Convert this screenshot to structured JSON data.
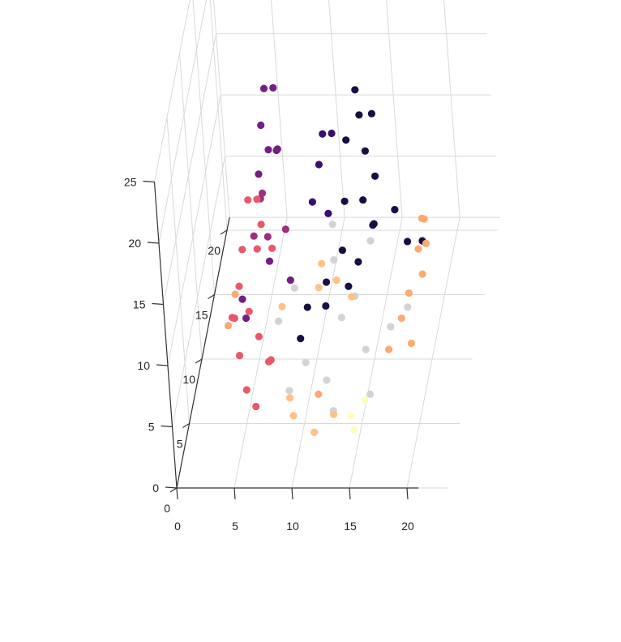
{
  "chart_data": {
    "type": "scatter",
    "title": "",
    "xlabel": "",
    "ylabel": "",
    "zlabel": "",
    "xlim": [
      0,
      21
    ],
    "ylim": [
      0,
      25
    ],
    "zlim": [
      0,
      21
    ],
    "grid": true,
    "legend": "none",
    "x_ticks": [
      "0",
      "5",
      "10",
      "15",
      "20"
    ],
    "y_ticks": [
      "0",
      "5",
      "10",
      "15",
      "20",
      "25"
    ],
    "z_ticks": [
      "0",
      "5",
      "10",
      "15",
      "20"
    ],
    "palette": [
      "#1b0c41",
      "#3b0f70",
      "#721f81",
      "#9e2f7f",
      "#cd4071",
      "#e8586a",
      "#fb8861",
      "#fea973",
      "#fec287",
      "#fcfdbf",
      "#d3d3d3"
    ],
    "series": [
      {
        "color": "#d3d3d3",
        "x": [
          10.5,
          13.0,
          15.5,
          8.5,
          11.5,
          14.0,
          17.5,
          9.5,
          12.5,
          16.5,
          11.0,
          14.5,
          7.5,
          18.5,
          13.5
        ],
        "y": [
          5.0,
          5.5,
          5.0,
          5.8,
          6.0,
          6.2,
          5.8,
          4.8,
          4.6,
          4.5,
          6.8,
          6.5,
          5.2,
          5.3,
          4.2
        ],
        "z": [
          5,
          8,
          6,
          10,
          12,
          9,
          7,
          3,
          4,
          3,
          14,
          13,
          8,
          9,
          2
        ]
      },
      {
        "color": "#1b0c41",
        "x": [
          15.0,
          15.5,
          16.0,
          14.5,
          15.5,
          16.5,
          14.0,
          15.0,
          16.0,
          13.5,
          15.5,
          14.5,
          12.5,
          11.0,
          10.5,
          12.0,
          13.5,
          18.0,
          16.5,
          19.0
        ],
        "y": [
          22.0,
          21.0,
          19.0,
          20.0,
          17.0,
          16.0,
          15.0,
          13.0,
          12.0,
          11.0,
          10.0,
          9.0,
          10.5,
          9.5,
          8.0,
          7.5,
          7.0,
          7.5,
          8.0,
          6.5
        ],
        "z": [
          10,
          9,
          11,
          8,
          10,
          9,
          8,
          10,
          9,
          8,
          11,
          9,
          6,
          5,
          4,
          7,
          9,
          12,
          14,
          13
        ]
      },
      {
        "color": "#3b0f70",
        "x": [
          12.5,
          13.0,
          12.0,
          11.5,
          12.5
        ],
        "y": [
          20.5,
          19.5,
          18.0,
          16.0,
          14.0
        ],
        "z": [
          8,
          9,
          8,
          7,
          8
        ]
      },
      {
        "color": "#721f81",
        "x": [
          6.5,
          7.0,
          6.0,
          7.5,
          6.5,
          7.0,
          5.5,
          4.5,
          5.0,
          6.5,
          8.5
        ],
        "y": [
          20.0,
          19.0,
          17.0,
          16.0,
          15.0,
          14.0,
          13.0,
          7.0,
          6.5,
          8.0,
          7.5
        ],
        "z": [
          12,
          13,
          12,
          11,
          12,
          13,
          12,
          8,
          7,
          10,
          9
        ]
      },
      {
        "color": "#9e2f7f",
        "x": [
          6.0,
          5.5,
          6.5,
          5.0,
          7.5
        ],
        "y": [
          12.5,
          11.0,
          10.0,
          9.0,
          8.5
        ],
        "z": [
          11,
          12,
          10,
          11,
          12
        ]
      },
      {
        "color": "#e8586a",
        "x": [
          5.0,
          5.5,
          6.0,
          4.5,
          5.5,
          6.5,
          4.0,
          5.0,
          6.0,
          4.5,
          3.5,
          5.5,
          7.0,
          4.0,
          6.5,
          7.5
        ],
        "y": [
          13.0,
          12.0,
          11.0,
          10.0,
          9.0,
          8.0,
          7.0,
          6.0,
          5.0,
          4.5,
          5.5,
          3.8,
          4.0,
          6.5,
          3.5,
          5.2
        ],
        "z": [
          10,
          11,
          10,
          9,
          10,
          11,
          9,
          8,
          7,
          6,
          8,
          4,
          6,
          7,
          3,
          5
        ]
      },
      {
        "color": "#fea973",
        "x": [
          20.5,
          20.0,
          20.5,
          19.5,
          20.0,
          19.0,
          18.5,
          19.5,
          17.5,
          4.0,
          4.5,
          12.0
        ],
        "y": [
          12.5,
          11.5,
          10.5,
          9.0,
          8.0,
          7.5,
          6.5,
          5.5,
          5.0,
          8.0,
          9.5,
          4.5
        ],
        "z": [
          9,
          10,
          9,
          10,
          9,
          8,
          7,
          6,
          6,
          5,
          6,
          3
        ]
      },
      {
        "color": "#fec287",
        "x": [
          11.0,
          12.5,
          14.0,
          10.0,
          12.0,
          13.5,
          9.5,
          8.5,
          11.5
        ],
        "y": [
          7.8,
          7.5,
          7.2,
          3.8,
          3.5,
          3.9,
          4.2,
          8.5,
          9.0
        ],
        "z": [
          10,
          9,
          8,
          2,
          1,
          2,
          3,
          6,
          7
        ]
      },
      {
        "color": "#fcfdbf",
        "x": [
          15.0,
          16.0,
          15.5
        ],
        "y": [
          3.8,
          4.0,
          3.7
        ],
        "z": [
          2,
          3,
          1
        ]
      }
    ]
  }
}
